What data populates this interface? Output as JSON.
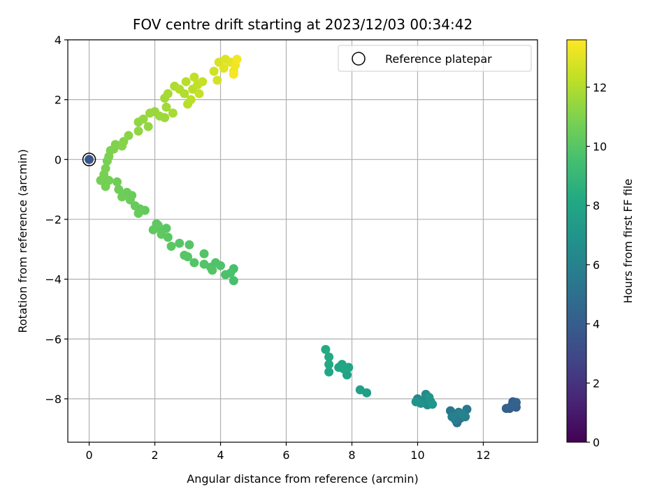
{
  "chart_data": {
    "type": "scatter",
    "title": "FOV centre drift starting at 2023/12/03 00:34:42",
    "xlabel": "Angular distance from reference (arcmin)",
    "ylabel": "Rotation from reference (arcmin)",
    "xlim": [
      -0.65,
      13.65
    ],
    "ylim": [
      -9.45,
      4.0
    ],
    "xticks": [
      0,
      2,
      4,
      6,
      8,
      10,
      12
    ],
    "yticks": [
      -8,
      -6,
      -4,
      -2,
      0,
      2,
      4
    ],
    "grid": true,
    "legend": {
      "position": "top-right",
      "entries": [
        "Reference platepar"
      ]
    },
    "colorbar": {
      "label": "Hours from first FF file",
      "range": [
        0,
        13.6
      ],
      "ticks": [
        0,
        2,
        4,
        6,
        8,
        10,
        12
      ],
      "colormap": "viridis"
    },
    "reference_point": {
      "x": 0,
      "y": 0,
      "t": 3.6
    },
    "points": [
      {
        "x": 12.8,
        "y": -8.32,
        "t": 3.8
      },
      {
        "x": 12.9,
        "y": -8.1,
        "t": 3.9
      },
      {
        "x": 13.0,
        "y": -8.28,
        "t": 4.0
      },
      {
        "x": 12.7,
        "y": -8.32,
        "t": 4.1
      },
      {
        "x": 13.0,
        "y": -8.12,
        "t": 4.2
      },
      {
        "x": 12.85,
        "y": -8.25,
        "t": 4.3
      },
      {
        "x": 11.1,
        "y": -8.5,
        "t": 5.0
      },
      {
        "x": 11.2,
        "y": -8.8,
        "t": 5.1
      },
      {
        "x": 11.3,
        "y": -8.65,
        "t": 5.2
      },
      {
        "x": 11.0,
        "y": -8.4,
        "t": 5.3
      },
      {
        "x": 11.5,
        "y": -8.35,
        "t": 5.4
      },
      {
        "x": 11.4,
        "y": -8.55,
        "t": 5.5
      },
      {
        "x": 11.15,
        "y": -8.7,
        "t": 5.6
      },
      {
        "x": 11.25,
        "y": -8.45,
        "t": 5.7
      },
      {
        "x": 11.05,
        "y": -8.6,
        "t": 5.8
      },
      {
        "x": 11.45,
        "y": -8.6,
        "t": 5.9
      },
      {
        "x": 11.35,
        "y": -8.5,
        "t": 6.0
      },
      {
        "x": 10.0,
        "y": -8.0,
        "t": 6.3
      },
      {
        "x": 10.2,
        "y": -8.05,
        "t": 6.4
      },
      {
        "x": 10.25,
        "y": -7.85,
        "t": 6.5
      },
      {
        "x": 10.3,
        "y": -8.2,
        "t": 6.6
      },
      {
        "x": 10.4,
        "y": -8.1,
        "t": 6.7
      },
      {
        "x": 10.1,
        "y": -8.15,
        "t": 6.8
      },
      {
        "x": 9.95,
        "y": -8.1,
        "t": 6.9
      },
      {
        "x": 10.35,
        "y": -7.95,
        "t": 7.0
      },
      {
        "x": 10.45,
        "y": -8.18,
        "t": 7.1
      },
      {
        "x": 8.45,
        "y": -7.8,
        "t": 7.6
      },
      {
        "x": 8.25,
        "y": -7.7,
        "t": 7.7
      },
      {
        "x": 7.85,
        "y": -7.2,
        "t": 7.8
      },
      {
        "x": 7.9,
        "y": -6.95,
        "t": 7.9
      },
      {
        "x": 7.7,
        "y": -6.85,
        "t": 8.0
      },
      {
        "x": 7.6,
        "y": -6.95,
        "t": 8.0
      },
      {
        "x": 7.3,
        "y": -7.1,
        "t": 8.1
      },
      {
        "x": 7.3,
        "y": -6.85,
        "t": 8.2
      },
      {
        "x": 7.3,
        "y": -6.6,
        "t": 8.2
      },
      {
        "x": 7.2,
        "y": -6.35,
        "t": 8.3
      },
      {
        "x": 7.75,
        "y": -7.0,
        "t": 8.1
      },
      {
        "x": 4.4,
        "y": -4.05,
        "t": 9.6
      },
      {
        "x": 4.4,
        "y": -3.65,
        "t": 9.6
      },
      {
        "x": 4.3,
        "y": -3.8,
        "t": 9.7
      },
      {
        "x": 4.15,
        "y": -3.85,
        "t": 9.7
      },
      {
        "x": 4.0,
        "y": -3.55,
        "t": 9.8
      },
      {
        "x": 3.85,
        "y": -3.45,
        "t": 9.8
      },
      {
        "x": 3.7,
        "y": -3.6,
        "t": 9.8
      },
      {
        "x": 3.75,
        "y": -3.7,
        "t": 9.9
      },
      {
        "x": 3.5,
        "y": -3.15,
        "t": 9.9
      },
      {
        "x": 3.5,
        "y": -3.5,
        "t": 9.9
      },
      {
        "x": 3.2,
        "y": -3.45,
        "t": 9.9
      },
      {
        "x": 3.0,
        "y": -3.25,
        "t": 10.0
      },
      {
        "x": 2.9,
        "y": -3.2,
        "t": 10.0
      },
      {
        "x": 3.05,
        "y": -2.85,
        "t": 10.0
      },
      {
        "x": 2.75,
        "y": -2.8,
        "t": 10.0
      },
      {
        "x": 2.5,
        "y": -2.9,
        "t": 10.1
      },
      {
        "x": 2.4,
        "y": -2.6,
        "t": 10.1
      },
      {
        "x": 2.35,
        "y": -2.3,
        "t": 10.1
      },
      {
        "x": 2.2,
        "y": -2.35,
        "t": 10.1
      },
      {
        "x": 2.2,
        "y": -2.5,
        "t": 10.2
      },
      {
        "x": 2.05,
        "y": -2.15,
        "t": 10.2
      },
      {
        "x": 2.1,
        "y": -2.2,
        "t": 10.2
      },
      {
        "x": 1.95,
        "y": -2.35,
        "t": 10.2
      },
      {
        "x": 1.7,
        "y": -1.7,
        "t": 10.3
      },
      {
        "x": 1.55,
        "y": -1.65,
        "t": 10.4
      },
      {
        "x": 1.5,
        "y": -1.8,
        "t": 10.4
      },
      {
        "x": 1.4,
        "y": -1.55,
        "t": 10.4
      },
      {
        "x": 1.25,
        "y": -1.35,
        "t": 10.5
      },
      {
        "x": 1.15,
        "y": -1.1,
        "t": 10.5
      },
      {
        "x": 1.3,
        "y": -1.2,
        "t": 10.5
      },
      {
        "x": 1.0,
        "y": -1.25,
        "t": 10.6
      },
      {
        "x": 0.85,
        "y": -0.75,
        "t": 10.6
      },
      {
        "x": 0.9,
        "y": -1.0,
        "t": 10.6
      },
      {
        "x": 0.6,
        "y": -0.7,
        "t": 10.7
      },
      {
        "x": 0.5,
        "y": -0.9,
        "t": 10.7
      },
      {
        "x": 0.35,
        "y": -0.7,
        "t": 10.7
      },
      {
        "x": 0.45,
        "y": -0.5,
        "t": 10.8
      },
      {
        "x": 0.5,
        "y": -0.3,
        "t": 10.8
      },
      {
        "x": 0.55,
        "y": -0.05,
        "t": 10.8
      },
      {
        "x": 0.6,
        "y": 0.1,
        "t": 10.9
      },
      {
        "x": 0.65,
        "y": 0.3,
        "t": 10.9
      },
      {
        "x": 0.75,
        "y": 0.35,
        "t": 11.0
      },
      {
        "x": 0.8,
        "y": 0.5,
        "t": 11.0
      },
      {
        "x": 1.0,
        "y": 0.45,
        "t": 11.1
      },
      {
        "x": 1.05,
        "y": 0.6,
        "t": 11.1
      },
      {
        "x": 1.2,
        "y": 0.8,
        "t": 11.2
      },
      {
        "x": 1.5,
        "y": 0.95,
        "t": 11.3
      },
      {
        "x": 1.5,
        "y": 1.25,
        "t": 11.3
      },
      {
        "x": 1.65,
        "y": 1.35,
        "t": 11.4
      },
      {
        "x": 1.8,
        "y": 1.1,
        "t": 11.4
      },
      {
        "x": 1.85,
        "y": 1.55,
        "t": 11.5
      },
      {
        "x": 2.0,
        "y": 1.6,
        "t": 11.5
      },
      {
        "x": 2.15,
        "y": 1.45,
        "t": 11.6
      },
      {
        "x": 2.3,
        "y": 1.4,
        "t": 11.6
      },
      {
        "x": 2.35,
        "y": 1.75,
        "t": 11.7
      },
      {
        "x": 2.3,
        "y": 2.05,
        "t": 11.7
      },
      {
        "x": 2.4,
        "y": 2.2,
        "t": 11.8
      },
      {
        "x": 2.55,
        "y": 1.55,
        "t": 11.8
      },
      {
        "x": 2.6,
        "y": 2.45,
        "t": 11.9
      },
      {
        "x": 2.75,
        "y": 2.35,
        "t": 12.0
      },
      {
        "x": 2.9,
        "y": 2.2,
        "t": 12.0
      },
      {
        "x": 2.95,
        "y": 2.6,
        "t": 12.1
      },
      {
        "x": 3.0,
        "y": 1.85,
        "t": 12.1
      },
      {
        "x": 3.1,
        "y": 2.0,
        "t": 12.2
      },
      {
        "x": 3.15,
        "y": 2.35,
        "t": 12.2
      },
      {
        "x": 3.2,
        "y": 2.75,
        "t": 12.3
      },
      {
        "x": 3.3,
        "y": 2.5,
        "t": 12.3
      },
      {
        "x": 3.35,
        "y": 2.2,
        "t": 12.4
      },
      {
        "x": 3.45,
        "y": 2.6,
        "t": 12.4
      },
      {
        "x": 3.8,
        "y": 2.95,
        "t": 12.6
      },
      {
        "x": 3.9,
        "y": 2.65,
        "t": 12.7
      },
      {
        "x": 3.95,
        "y": 3.25,
        "t": 12.8
      },
      {
        "x": 4.15,
        "y": 3.35,
        "t": 12.9
      },
      {
        "x": 4.3,
        "y": 3.25,
        "t": 13.0
      },
      {
        "x": 4.1,
        "y": 3.05,
        "t": 13.0
      },
      {
        "x": 4.4,
        "y": 2.95,
        "t": 13.2
      },
      {
        "x": 4.45,
        "y": 3.15,
        "t": 13.3
      },
      {
        "x": 4.5,
        "y": 3.35,
        "t": 13.4
      },
      {
        "x": 4.4,
        "y": 2.85,
        "t": 13.5
      }
    ]
  }
}
